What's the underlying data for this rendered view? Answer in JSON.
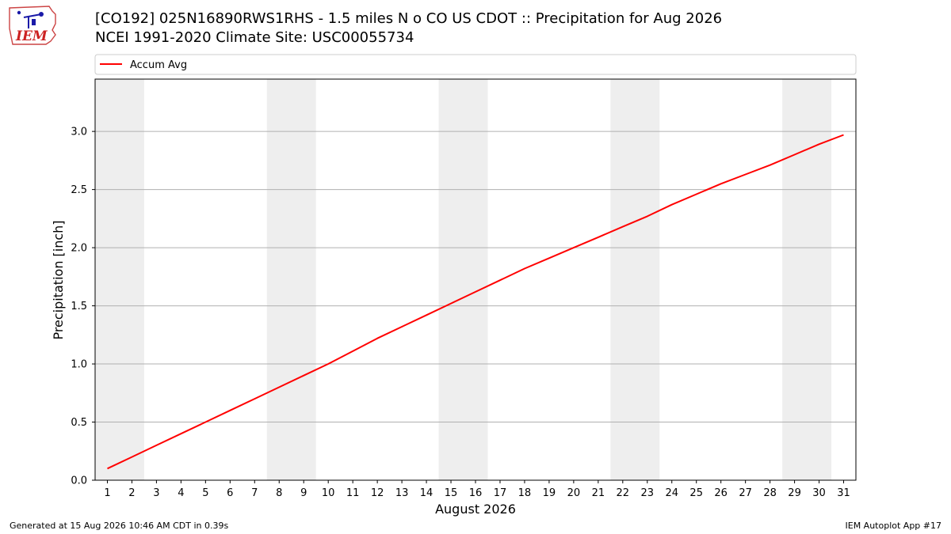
{
  "header": {
    "line1": "[CO192] 025N16890RWS1RHS - 1.5 miles N o CO US CDOT :: Precipitation for Aug 2026",
    "line2": "NCEI 1991-2020 Climate Site: USC00055734"
  },
  "logo": {
    "text": "IEM"
  },
  "footer": {
    "left": "Generated at 15 Aug 2026 10:46 AM CDT in 0.39s",
    "right": "IEM Autoplot App #17"
  },
  "chart_data": {
    "type": "line",
    "xlabel": "August 2026",
    "ylabel": "Precipitation [inch]",
    "xlim": [
      0.5,
      31.5
    ],
    "ylim": [
      0,
      3.45
    ],
    "x": [
      1,
      2,
      3,
      4,
      5,
      6,
      7,
      8,
      9,
      10,
      11,
      12,
      13,
      14,
      15,
      16,
      17,
      18,
      19,
      20,
      21,
      22,
      23,
      24,
      25,
      26,
      27,
      28,
      29,
      30,
      31
    ],
    "x_tick_labels": [
      "1",
      "2",
      "3",
      "4",
      "5",
      "6",
      "7",
      "8",
      "9",
      "10",
      "11",
      "12",
      "13",
      "14",
      "15",
      "16",
      "17",
      "18",
      "19",
      "20",
      "21",
      "22",
      "23",
      "24",
      "25",
      "26",
      "27",
      "28",
      "29",
      "30",
      "31"
    ],
    "y_ticks": [
      0.0,
      0.5,
      1.0,
      1.5,
      2.0,
      2.5,
      3.0
    ],
    "y_tick_labels": [
      "0.0",
      "0.5",
      "1.0",
      "1.5",
      "2.0",
      "2.5",
      "3.0"
    ],
    "grid": "y-major",
    "weekend_shading": [
      [
        0.5,
        2.5
      ],
      [
        7.5,
        9.5
      ],
      [
        14.5,
        16.5
      ],
      [
        21.5,
        23.5
      ],
      [
        28.5,
        30.5
      ]
    ],
    "legend_position": "top, above plot",
    "series": [
      {
        "name": "Accum Avg",
        "color": "#ff0000",
        "values": [
          0.1,
          0.2,
          0.3,
          0.4,
          0.5,
          0.6,
          0.7,
          0.8,
          0.9,
          1.0,
          1.11,
          1.22,
          1.32,
          1.42,
          1.52,
          1.62,
          1.72,
          1.82,
          1.91,
          2.0,
          2.09,
          2.18,
          2.27,
          2.37,
          2.46,
          2.55,
          2.63,
          2.71,
          2.8,
          2.89,
          2.97
        ]
      }
    ],
    "colors": {
      "shading": "#eeeeee",
      "grid": "#b0b0b0"
    }
  }
}
